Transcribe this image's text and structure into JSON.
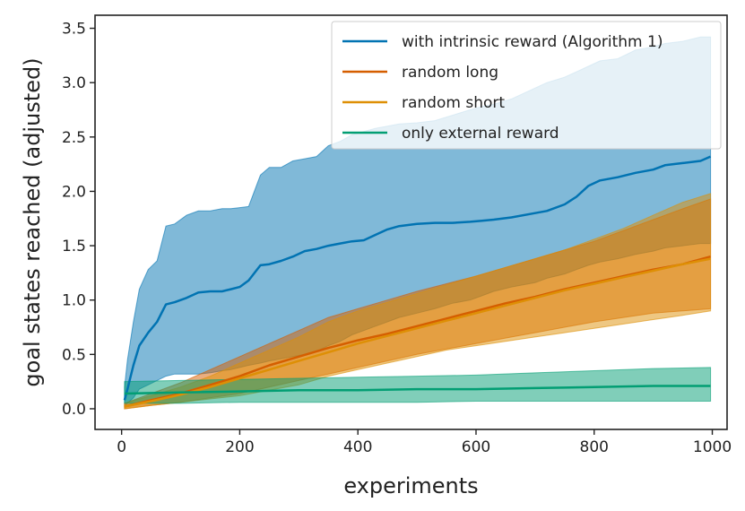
{
  "chart_data": {
    "type": "line",
    "title": "",
    "xlabel": "experiments",
    "ylabel": "goal states reached (adjusted)",
    "xlim": [
      -45,
      1025
    ],
    "ylim": [
      -0.19,
      3.62
    ],
    "xticks": [
      0,
      200,
      400,
      600,
      800,
      1000
    ],
    "yticks": [
      0.0,
      0.5,
      1.0,
      1.5,
      2.0,
      2.5,
      3.0,
      3.5
    ],
    "xtick_labels": [
      "0",
      "200",
      "400",
      "600",
      "800",
      "1000"
    ],
    "ytick_labels": [
      "0.0",
      "0.5",
      "1.0",
      "1.5",
      "2.0",
      "2.5",
      "3.0",
      "3.5"
    ],
    "legend_position": "top-right",
    "series": [
      {
        "name": "with intrinsic reward (Algorithm 1)",
        "color": "#0173b2",
        "band_opacity": 0.5,
        "x": [
          5,
          10,
          20,
          30,
          45,
          60,
          75,
          90,
          110,
          130,
          150,
          170,
          185,
          200,
          215,
          235,
          250,
          270,
          290,
          310,
          330,
          350,
          370,
          390,
          410,
          430,
          450,
          470,
          500,
          530,
          560,
          590,
          610,
          630,
          660,
          700,
          720,
          750,
          770,
          790,
          810,
          840,
          870,
          900,
          920,
          950,
          980,
          997
        ],
        "mean": [
          0.08,
          0.18,
          0.4,
          0.58,
          0.7,
          0.8,
          0.96,
          0.98,
          1.02,
          1.07,
          1.08,
          1.08,
          1.1,
          1.12,
          1.18,
          1.32,
          1.33,
          1.36,
          1.4,
          1.45,
          1.47,
          1.5,
          1.52,
          1.54,
          1.55,
          1.6,
          1.65,
          1.68,
          1.7,
          1.71,
          1.71,
          1.72,
          1.73,
          1.74,
          1.76,
          1.8,
          1.82,
          1.88,
          1.95,
          2.05,
          2.1,
          2.13,
          2.17,
          2.2,
          2.24,
          2.26,
          2.28,
          2.32
        ],
        "upper": [
          0.2,
          0.45,
          0.8,
          1.1,
          1.28,
          1.36,
          1.68,
          1.7,
          1.78,
          1.82,
          1.82,
          1.84,
          1.84,
          1.85,
          1.86,
          2.15,
          2.22,
          2.22,
          2.28,
          2.3,
          2.32,
          2.42,
          2.46,
          2.52,
          2.55,
          2.58,
          2.6,
          2.62,
          2.63,
          2.65,
          2.7,
          2.75,
          2.78,
          2.8,
          2.85,
          2.95,
          3.0,
          3.05,
          3.1,
          3.15,
          3.2,
          3.22,
          3.3,
          3.33,
          3.36,
          3.38,
          3.42,
          3.42
        ],
        "lower": [
          0.02,
          0.05,
          0.1,
          0.18,
          0.22,
          0.26,
          0.3,
          0.32,
          0.32,
          0.32,
          0.33,
          0.35,
          0.36,
          0.38,
          0.4,
          0.42,
          0.44,
          0.46,
          0.48,
          0.5,
          0.53,
          0.58,
          0.62,
          0.68,
          0.72,
          0.76,
          0.8,
          0.84,
          0.88,
          0.92,
          0.97,
          1.0,
          1.04,
          1.08,
          1.12,
          1.16,
          1.2,
          1.24,
          1.28,
          1.32,
          1.35,
          1.38,
          1.42,
          1.45,
          1.48,
          1.5,
          1.52,
          1.52
        ]
      },
      {
        "name": "random long",
        "color": "#d55e00",
        "band_opacity": 0.5,
        "x": [
          5,
          50,
          100,
          150,
          200,
          250,
          300,
          350,
          400,
          450,
          500,
          550,
          600,
          650,
          700,
          750,
          800,
          850,
          900,
          950,
          997
        ],
        "mean": [
          0.02,
          0.08,
          0.14,
          0.22,
          0.3,
          0.4,
          0.48,
          0.56,
          0.63,
          0.69,
          0.76,
          0.83,
          0.9,
          0.97,
          1.03,
          1.1,
          1.16,
          1.22,
          1.28,
          1.33,
          1.4
        ],
        "upper": [
          0.05,
          0.14,
          0.24,
          0.36,
          0.48,
          0.6,
          0.72,
          0.84,
          0.92,
          1.0,
          1.08,
          1.15,
          1.22,
          1.3,
          1.38,
          1.46,
          1.54,
          1.64,
          1.74,
          1.84,
          1.93
        ],
        "lower": [
          0.0,
          0.03,
          0.06,
          0.1,
          0.14,
          0.2,
          0.26,
          0.32,
          0.38,
          0.44,
          0.5,
          0.55,
          0.6,
          0.65,
          0.7,
          0.75,
          0.8,
          0.84,
          0.88,
          0.9,
          0.92
        ]
      },
      {
        "name": "random short",
        "color": "#de8f05",
        "band_opacity": 0.5,
        "x": [
          5,
          50,
          100,
          150,
          200,
          250,
          300,
          350,
          400,
          450,
          500,
          550,
          600,
          650,
          700,
          750,
          800,
          850,
          900,
          950,
          997
        ],
        "mean": [
          0.02,
          0.07,
          0.13,
          0.2,
          0.28,
          0.36,
          0.44,
          0.52,
          0.6,
          0.67,
          0.74,
          0.81,
          0.88,
          0.95,
          1.02,
          1.09,
          1.15,
          1.21,
          1.27,
          1.33,
          1.38
        ],
        "upper": [
          0.05,
          0.12,
          0.2,
          0.3,
          0.42,
          0.54,
          0.66,
          0.8,
          0.9,
          0.98,
          1.06,
          1.14,
          1.22,
          1.3,
          1.38,
          1.46,
          1.56,
          1.66,
          1.78,
          1.9,
          1.98
        ],
        "lower": [
          0.0,
          0.03,
          0.06,
          0.09,
          0.12,
          0.17,
          0.22,
          0.3,
          0.36,
          0.42,
          0.48,
          0.54,
          0.58,
          0.62,
          0.66,
          0.7,
          0.74,
          0.78,
          0.82,
          0.86,
          0.9
        ]
      },
      {
        "name": "only external reward",
        "color": "#029e73",
        "band_opacity": 0.5,
        "x": [
          5,
          100,
          200,
          300,
          400,
          500,
          600,
          700,
          800,
          900,
          997
        ],
        "mean": [
          0.14,
          0.15,
          0.16,
          0.17,
          0.17,
          0.18,
          0.18,
          0.19,
          0.2,
          0.21,
          0.21
        ],
        "upper": [
          0.25,
          0.26,
          0.27,
          0.28,
          0.29,
          0.3,
          0.31,
          0.33,
          0.35,
          0.37,
          0.38
        ],
        "lower": [
          0.05,
          0.05,
          0.06,
          0.06,
          0.06,
          0.06,
          0.07,
          0.07,
          0.07,
          0.07,
          0.07
        ]
      }
    ]
  }
}
